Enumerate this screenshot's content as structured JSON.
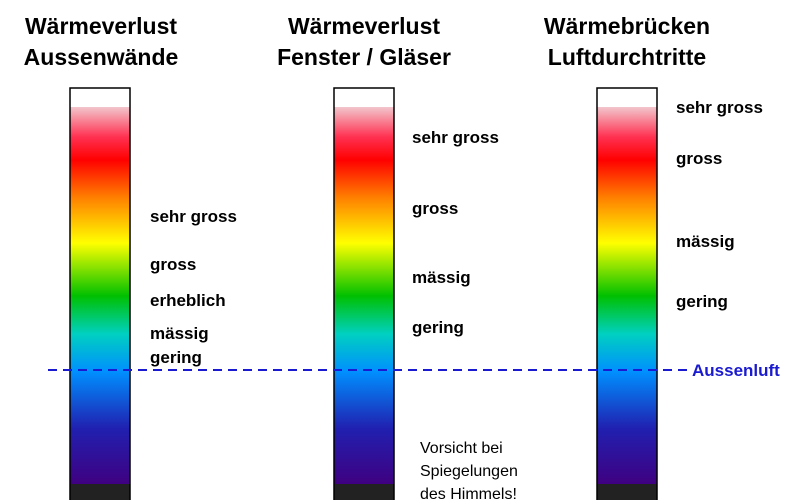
{
  "columns": [
    {
      "title": [
        "Wärmeverlust",
        "Aussenwände"
      ],
      "labels": [
        "sehr gross",
        "gross",
        "erheblich",
        "mässig",
        "gering"
      ]
    },
    {
      "title": [
        "Wärmeverlust",
        "Fenster / Gläser"
      ],
      "labels": [
        "sehr gross",
        "gross",
        "mässig",
        "gering"
      ]
    },
    {
      "title": [
        "Wärmebrücken",
        "Luftdurchtritte"
      ],
      "labels": [
        "sehr gross",
        "gross",
        "mässig",
        "gering"
      ]
    }
  ],
  "reference": "Aussenluft",
  "note": [
    "Vorsicht bei",
    "Spiegelungen",
    "des Himmels!"
  ]
}
